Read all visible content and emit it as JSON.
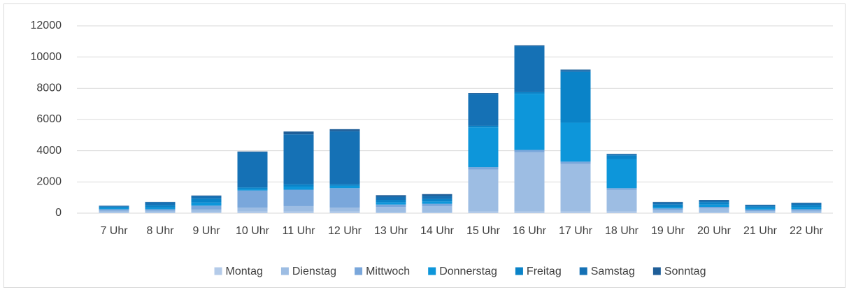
{
  "chart_data": {
    "type": "stacked_bar",
    "categories": [
      "7 Uhr",
      "8 Uhr",
      "9 Uhr",
      "10 Uhr",
      "11 Uhr",
      "12 Uhr",
      "13 Uhr",
      "14 Uhr",
      "15 Uhr",
      "16 Uhr",
      "17 Uhr",
      "18 Uhr",
      "19 Uhr",
      "20 Uhr",
      "21 Uhr",
      "22 Uhr"
    ],
    "series": [
      {
        "name": "Montag",
        "color": "#b4cbe9",
        "values": [
          50,
          50,
          80,
          100,
          100,
          100,
          50,
          50,
          100,
          100,
          100,
          100,
          50,
          50,
          30,
          30
        ]
      },
      {
        "name": "Dienstag",
        "color": "#9dbde3",
        "values": [
          100,
          100,
          150,
          250,
          350,
          250,
          350,
          400,
          2700,
          3800,
          3050,
          1400,
          150,
          250,
          100,
          120
        ]
      },
      {
        "name": "Mittwoch",
        "color": "#7aa7db",
        "values": [
          100,
          100,
          250,
          1100,
          1050,
          1250,
          150,
          150,
          150,
          150,
          150,
          100,
          100,
          100,
          100,
          100
        ]
      },
      {
        "name": "Donnerstag",
        "color": "#0d96da",
        "values": [
          80,
          100,
          200,
          100,
          200,
          150,
          150,
          150,
          2550,
          3600,
          2500,
          1850,
          100,
          150,
          100,
          120
        ]
      },
      {
        "name": "Freitag",
        "color": "#0a83c8",
        "values": [
          80,
          150,
          250,
          100,
          150,
          100,
          150,
          150,
          100,
          100,
          3250,
          250,
          150,
          150,
          100,
          150
        ]
      },
      {
        "name": "Samstag",
        "color": "#1571b5",
        "values": [
          50,
          200,
          150,
          2250,
          3200,
          3400,
          200,
          200,
          2050,
          2950,
          100,
          70,
          130,
          100,
          80,
          120
        ]
      },
      {
        "name": "Sonntag",
        "color": "#1f5e98",
        "values": [
          20,
          20,
          50,
          50,
          180,
          130,
          100,
          120,
          50,
          50,
          50,
          30,
          40,
          50,
          30,
          30
        ]
      }
    ],
    "ylim": [
      0,
      12000
    ],
    "yticks": [
      0,
      2000,
      4000,
      6000,
      8000,
      10000,
      12000
    ],
    "grid": true,
    "legend": "bottom"
  }
}
